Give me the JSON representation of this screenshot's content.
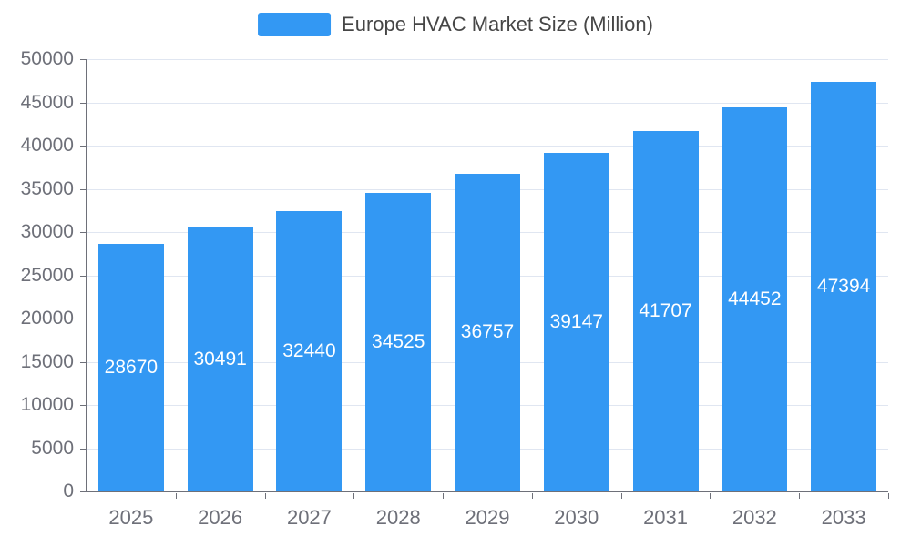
{
  "chart_data": {
    "type": "bar",
    "title": "Europe HVAC Market Size (Million)",
    "categories": [
      "2025",
      "2026",
      "2027",
      "2028",
      "2029",
      "2030",
      "2031",
      "2032",
      "2033"
    ],
    "values": [
      28670,
      30491,
      32440,
      34525,
      36757,
      39147,
      41707,
      44452,
      47394
    ],
    "xlabel": "",
    "ylabel": "",
    "ylim": [
      0,
      50000
    ],
    "ytick_step": 5000,
    "ytick_labels": [
      "0",
      "5000",
      "10000",
      "15000",
      "20000",
      "25000",
      "30000",
      "35000",
      "40000",
      "45000",
      "50000"
    ],
    "grid": true,
    "legend_position": "top-center",
    "bar_color": "#3398F3",
    "axis_color": "#6E7079",
    "gridline_color": "#E0E6F1",
    "value_label_color": "#ffffff"
  }
}
